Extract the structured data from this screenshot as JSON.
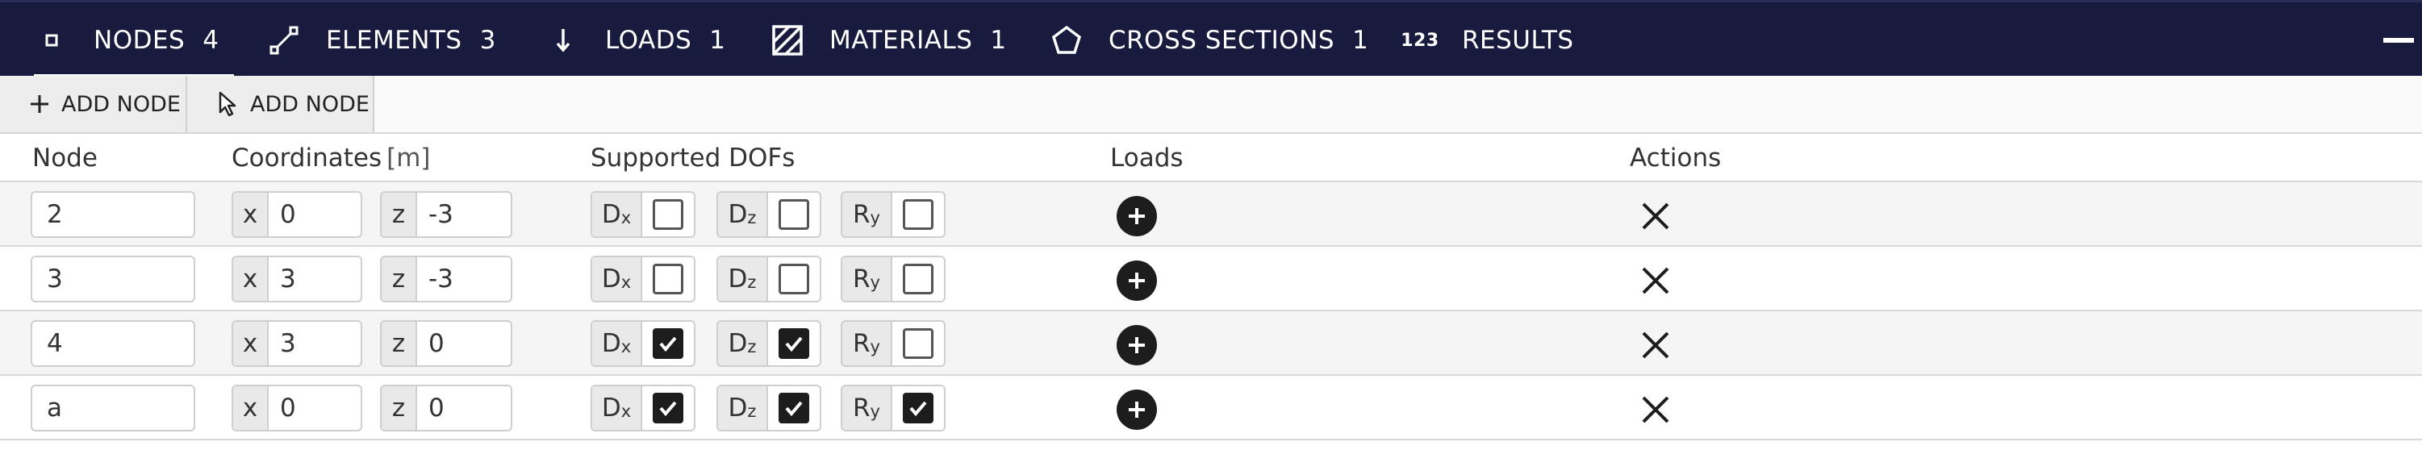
{
  "tabs": [
    {
      "label": "NODES",
      "count": "4",
      "icon": "node-square-icon",
      "active": true
    },
    {
      "label": "ELEMENTS",
      "count": "3",
      "icon": "element-line-icon",
      "active": false
    },
    {
      "label": "LOADS",
      "count": "1",
      "icon": "arrow-down-icon",
      "active": false
    },
    {
      "label": "MATERIALS",
      "count": "1",
      "icon": "hatch-square-icon",
      "active": false
    },
    {
      "label": "CROSS SECTIONS",
      "count": "1",
      "icon": "pentagon-icon",
      "active": false
    },
    {
      "label": "RESULTS",
      "count": "",
      "icon": "numbers-123-icon",
      "active": false
    }
  ],
  "tab_icon_text": {
    "results": "123"
  },
  "toolbar": {
    "add_node_label": "ADD NODE",
    "add_node_pick_label": "ADD NODE"
  },
  "columns": {
    "node": "Node",
    "coordinates": "Coordinates",
    "coordinates_unit": "[m]",
    "supported_dofs": "Supported DOFs",
    "loads": "Loads",
    "actions": "Actions"
  },
  "coord_labels": {
    "x": "x",
    "z": "z"
  },
  "dof_labels": {
    "dx_main": "D",
    "dx_sub": "x",
    "dz_main": "D",
    "dz_sub": "z",
    "ry_main": "R",
    "ry_sub": "y"
  },
  "rows": [
    {
      "node": "2",
      "x": "0",
      "z": "-3",
      "dx": false,
      "dz": false,
      "ry": false
    },
    {
      "node": "3",
      "x": "3",
      "z": "-3",
      "dx": false,
      "dz": false,
      "ry": false
    },
    {
      "node": "4",
      "x": "3",
      "z": "0",
      "dx": true,
      "dz": true,
      "ry": false
    },
    {
      "node": "a",
      "x": "0",
      "z": "0",
      "dx": true,
      "dz": true,
      "ry": true
    }
  ],
  "colors": {
    "topbar": "#181a3e",
    "accent": "#ffffff",
    "check": "#1d1d1d"
  }
}
